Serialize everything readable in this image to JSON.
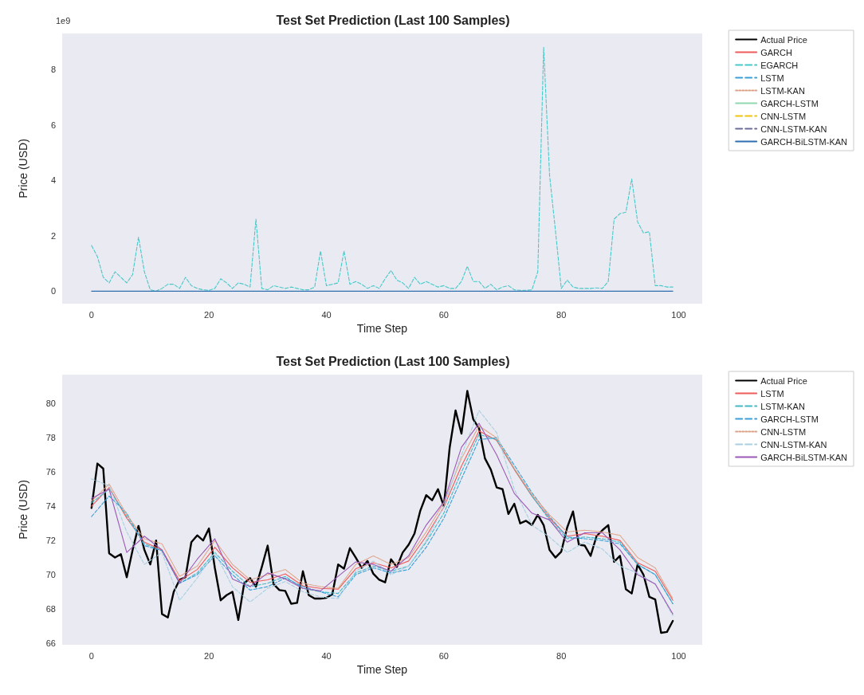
{
  "chart_data": [
    {
      "type": "line",
      "title": "Test Set Prediction (Last 100 Samples)",
      "xlabel": "Time Step",
      "ylabel": "Price (USD)",
      "annotations": [
        "1e9"
      ],
      "xlim": [
        -5,
        104
      ],
      "xticks": [
        0,
        20,
        40,
        60,
        80,
        100
      ],
      "ylim": [
        -0.45,
        9.3
      ],
      "yticks": [
        0,
        2,
        4,
        6,
        8
      ],
      "grid": false,
      "legend": "top right",
      "x": [
        0,
        1,
        2,
        3,
        4,
        5,
        6,
        7,
        8,
        9,
        10,
        11,
        12,
        13,
        14,
        15,
        16,
        17,
        18,
        19,
        20,
        21,
        22,
        23,
        24,
        25,
        26,
        27,
        28,
        29,
        30,
        31,
        32,
        33,
        34,
        35,
        36,
        37,
        38,
        39,
        40,
        41,
        42,
        43,
        44,
        45,
        46,
        47,
        48,
        49,
        50,
        51,
        52,
        53,
        54,
        55,
        56,
        57,
        58,
        59,
        60,
        61,
        62,
        63,
        64,
        65,
        66,
        67,
        68,
        69,
        70,
        71,
        72,
        73,
        74,
        75,
        76,
        77,
        78,
        79,
        80,
        81,
        82,
        83,
        84,
        85,
        86,
        87,
        88,
        89,
        90,
        91,
        92,
        93,
        94,
        95,
        96,
        97,
        98,
        99
      ],
      "series": [
        {
          "name": "Actual Price",
          "color": "#000000",
          "line_style": "solid",
          "values": [
            null,
            null,
            null,
            null,
            null,
            null,
            null,
            null,
            null,
            null,
            null,
            null,
            null,
            null,
            null,
            null,
            null,
            null,
            null,
            null,
            null,
            null,
            null,
            null,
            null,
            null,
            null,
            null,
            null,
            null,
            null,
            null,
            null,
            null,
            null,
            null,
            null,
            null,
            null,
            null,
            null,
            null,
            null,
            null,
            null,
            null,
            null,
            null,
            null,
            null,
            null,
            null,
            null,
            null,
            null,
            null,
            null,
            null,
            null,
            null,
            null,
            null,
            null,
            null,
            null,
            null,
            null,
            null,
            null,
            null,
            null,
            null,
            null,
            null,
            null,
            null,
            null,
            null,
            null,
            null,
            null,
            null,
            null,
            null,
            null,
            null,
            null,
            null,
            null,
            null,
            null,
            null,
            null,
            null,
            null,
            null,
            null,
            null,
            null,
            null
          ]
        },
        {
          "name": "GARCH",
          "color": "#f05b5b",
          "line_style": "solid",
          "values": [
            null,
            null,
            null,
            null,
            null,
            null,
            null,
            null,
            null,
            null,
            null,
            null,
            null,
            null,
            null,
            null,
            null,
            null,
            null,
            null,
            null,
            null,
            null,
            null,
            null,
            null,
            null,
            null,
            null,
            null,
            null,
            null,
            null,
            null,
            null,
            null,
            null,
            null,
            null,
            null,
            null,
            null,
            null,
            null,
            null,
            null,
            null,
            null,
            null,
            null,
            null,
            null,
            null,
            null,
            null,
            null,
            null,
            null,
            null,
            null,
            null,
            null,
            null,
            null,
            null,
            null,
            null,
            null,
            null,
            null,
            null,
            null,
            null,
            null,
            null,
            null,
            null,
            null,
            null,
            null,
            null,
            null,
            null,
            null,
            null,
            null,
            null,
            null,
            null,
            null,
            null,
            null,
            null,
            null,
            null,
            null,
            null,
            null,
            null,
            null
          ]
        },
        {
          "name": "EGARCH",
          "color": "#48c9c9",
          "line_style": "dashed",
          "values": [
            1.65,
            1.25,
            0.5,
            0.3,
            0.7,
            0.5,
            0.3,
            0.6,
            1.95,
            0.7,
            0.05,
            0.0,
            0.1,
            0.25,
            0.25,
            0.1,
            0.5,
            0.2,
            0.1,
            0.05,
            0.03,
            0.1,
            0.45,
            0.3,
            0.1,
            0.3,
            0.25,
            0.15,
            2.6,
            0.1,
            0.05,
            0.2,
            0.15,
            0.1,
            0.15,
            0.1,
            0.05,
            0.05,
            0.15,
            1.45,
            0.2,
            0.25,
            0.3,
            1.45,
            0.25,
            0.35,
            0.25,
            0.1,
            0.2,
            0.1,
            0.45,
            0.75,
            0.4,
            0.3,
            0.1,
            0.5,
            0.25,
            0.35,
            0.25,
            0.15,
            0.2,
            0.1,
            0.1,
            0.35,
            0.9,
            0.35,
            0.35,
            0.1,
            0.25,
            0.05,
            0.15,
            0.2,
            0.05,
            0.03,
            0.03,
            0.05,
            0.7,
            8.8,
            4.2,
            2.2,
            0.1,
            0.4,
            0.15,
            0.1,
            0.1,
            0.1,
            0.12,
            0.1,
            0.35,
            2.6,
            2.8,
            2.85,
            4.05,
            2.5,
            2.1,
            2.15,
            0.2,
            0.2,
            0.15,
            0.15
          ]
        },
        {
          "name": "LSTM",
          "color": "#3aa0d8",
          "line_style": "dashed",
          "values": [
            null,
            null,
            null,
            null,
            null,
            null,
            null,
            null,
            null,
            null,
            null,
            null,
            null,
            null,
            null,
            null,
            null,
            null,
            null,
            null,
            null,
            null,
            null,
            null,
            null,
            null,
            null,
            null,
            null,
            null,
            null,
            null,
            null,
            null,
            null,
            null,
            null,
            null,
            null,
            null,
            null,
            null,
            null,
            null,
            null,
            null,
            null,
            null,
            null,
            null,
            null,
            null,
            null,
            null,
            null,
            null,
            null,
            null,
            null,
            null,
            null,
            null,
            null,
            null,
            null,
            null,
            null,
            null,
            null,
            null,
            null,
            null,
            null,
            null,
            null,
            null,
            null,
            null,
            null,
            null,
            null,
            null,
            null,
            null,
            null,
            null,
            null,
            null,
            null,
            null,
            null,
            null,
            null,
            null,
            null,
            null,
            null,
            null,
            null,
            null
          ]
        },
        {
          "name": "LSTM-KAN",
          "color": "#e0a080",
          "line_style": "dotted",
          "values": [
            null,
            null,
            null,
            null,
            null,
            null,
            null,
            null,
            null,
            null,
            null,
            null,
            null,
            null,
            null,
            null,
            null,
            null,
            null,
            null,
            null,
            null,
            null,
            null,
            null,
            null,
            null,
            null,
            null,
            null,
            null,
            null,
            null,
            null,
            null,
            null,
            null,
            null,
            null,
            null,
            null,
            null,
            null,
            null,
            null,
            null,
            null,
            null,
            null,
            null,
            null,
            null,
            null,
            null,
            null,
            null,
            null,
            null,
            null,
            null,
            null,
            null,
            null,
            null,
            null,
            null,
            null,
            null,
            null,
            null,
            null,
            null,
            null,
            null,
            null,
            null,
            null,
            null,
            null,
            null,
            null,
            null,
            null,
            null,
            null,
            null,
            null,
            null,
            null,
            null,
            null,
            null,
            null,
            null,
            null,
            null,
            null,
            null,
            null,
            null
          ]
        },
        {
          "name": "GARCH-LSTM",
          "color": "#8fd8b0",
          "line_style": "solid",
          "values": [
            null,
            null,
            null,
            null,
            null,
            null,
            null,
            null,
            null,
            null,
            null,
            null,
            null,
            null,
            null,
            null,
            null,
            null,
            null,
            null,
            null,
            null,
            null,
            null,
            null,
            null,
            null,
            null,
            null,
            null,
            null,
            null,
            null,
            null,
            null,
            null,
            null,
            null,
            null,
            null,
            null,
            null,
            null,
            null,
            null,
            null,
            null,
            null,
            null,
            null,
            null,
            null,
            null,
            null,
            null,
            null,
            null,
            null,
            null,
            null,
            null,
            null,
            null,
            null,
            null,
            null,
            null,
            null,
            null,
            null,
            null,
            null,
            null,
            null,
            null,
            null,
            null,
            null,
            null,
            null,
            null,
            null,
            null,
            null,
            null,
            null,
            null,
            null,
            null,
            null,
            null,
            null,
            null,
            null,
            null,
            null,
            null,
            null,
            null,
            null
          ]
        },
        {
          "name": "CNN-LSTM",
          "color": "#f1c40f",
          "line_style": "dashed",
          "values": [
            null,
            null,
            null,
            null,
            null,
            null,
            null,
            null,
            null,
            null,
            null,
            null,
            null,
            null,
            null,
            null,
            null,
            null,
            null,
            null,
            null,
            null,
            null,
            null,
            null,
            null,
            null,
            null,
            null,
            null,
            null,
            null,
            null,
            null,
            null,
            null,
            null,
            null,
            null,
            null,
            null,
            null,
            null,
            null,
            null,
            null,
            null,
            null,
            null,
            null,
            null,
            null,
            null,
            null,
            null,
            null,
            null,
            null,
            null,
            null,
            null,
            null,
            null,
            null,
            null,
            null,
            null,
            null,
            null,
            null,
            null,
            null,
            null,
            null,
            null,
            null,
            null,
            null,
            null,
            null,
            null,
            null,
            null,
            null,
            null,
            null,
            null,
            null,
            null,
            null,
            null,
            null,
            null,
            null,
            null,
            null,
            null,
            null,
            null,
            null
          ]
        },
        {
          "name": "CNN-LSTM-KAN",
          "color": "#6c6c9a",
          "line_style": "dashed",
          "values": [
            null,
            null,
            null,
            null,
            null,
            null,
            null,
            null,
            null,
            null,
            null,
            null,
            null,
            null,
            null,
            null,
            null,
            null,
            null,
            null,
            null,
            null,
            null,
            null,
            null,
            null,
            null,
            null,
            null,
            null,
            null,
            null,
            null,
            null,
            null,
            null,
            null,
            null,
            null,
            null,
            null,
            null,
            null,
            null,
            null,
            null,
            null,
            null,
            null,
            null,
            null,
            null,
            null,
            null,
            null,
            null,
            null,
            null,
            null,
            null,
            null,
            null,
            null,
            null,
            null,
            null,
            null,
            null,
            null,
            null,
            null,
            null,
            null,
            null,
            null,
            null,
            null,
            null,
            null,
            null,
            null,
            null,
            null,
            null,
            null,
            null,
            null,
            null,
            null,
            null,
            null,
            null,
            null,
            null,
            null,
            null,
            null,
            null,
            null,
            null
          ]
        },
        {
          "name": "GARCH-BiLSTM-KAN",
          "color": "#2f6fb0",
          "x": [
            0,
            99
          ],
          "values": [
            0,
            0
          ],
          "line_style": "solid"
        }
      ]
    },
    {
      "type": "line",
      "title": "Test Set Prediction (Last 100 Samples)",
      "xlabel": "Time Step",
      "ylabel": "Price (USD)",
      "xlim": [
        -5,
        104
      ],
      "xticks": [
        0,
        20,
        40,
        60,
        80,
        100
      ],
      "ylim": [
        65.9,
        81.7
      ],
      "yticks": [
        66,
        68,
        70,
        72,
        74,
        76,
        78,
        80
      ],
      "grid": false,
      "legend": "top right",
      "x": [
        0,
        1,
        2,
        3,
        4,
        5,
        6,
        7,
        8,
        9,
        10,
        11,
        12,
        13,
        14,
        15,
        16,
        17,
        18,
        19,
        20,
        21,
        22,
        23,
        24,
        25,
        26,
        27,
        28,
        29,
        30,
        31,
        32,
        33,
        34,
        35,
        36,
        37,
        38,
        39,
        40,
        41,
        42,
        43,
        44,
        45,
        46,
        47,
        48,
        49,
        50,
        51,
        52,
        53,
        54,
        55,
        56,
        57,
        58,
        59,
        60,
        61,
        62,
        63,
        64,
        65,
        66,
        67,
        68,
        69,
        70,
        71,
        72,
        73,
        74,
        75,
        76,
        77,
        78,
        79,
        80,
        81,
        82,
        83,
        84,
        85,
        86,
        87,
        88,
        89,
        90,
        91,
        92,
        93,
        94,
        95,
        96,
        97,
        98,
        99
      ],
      "series": [
        {
          "name": "Actual Price",
          "color": "#000000",
          "line_style": "solid",
          "values": [
            73.9,
            76.5,
            76.2,
            71.25,
            71.0,
            71.2,
            69.85,
            71.45,
            72.85,
            71.45,
            70.6,
            72.0,
            67.7,
            67.5,
            69.0,
            69.7,
            69.85,
            71.9,
            72.3,
            72.0,
            72.7,
            70.4,
            68.5,
            68.8,
            69.0,
            67.35,
            69.5,
            69.8,
            69.3,
            70.45,
            71.7,
            69.45,
            69.1,
            69.05,
            68.3,
            68.35,
            70.2,
            68.8,
            68.6,
            68.6,
            68.65,
            68.85,
            70.6,
            70.35,
            71.55,
            71.0,
            70.4,
            70.8,
            70.05,
            69.7,
            69.55,
            70.9,
            70.45,
            71.3,
            71.75,
            72.4,
            73.75,
            74.65,
            74.35,
            75.0,
            74.0,
            77.45,
            79.6,
            78.25,
            80.75,
            79.1,
            78.55,
            76.8,
            76.15,
            75.1,
            75.0,
            73.55,
            74.15,
            73.0,
            73.15,
            72.9,
            73.5,
            72.9,
            71.45,
            71.0,
            71.35,
            72.75,
            73.7,
            71.75,
            71.7,
            71.1,
            72.25,
            72.6,
            72.9,
            70.75,
            71.1,
            69.15,
            68.9,
            70.6,
            70.0,
            68.7,
            68.55,
            66.6,
            66.65,
            67.3
          ]
        },
        {
          "name": "LSTM",
          "color": "#f05b5b",
          "line_style": "solid",
          "x": [
            0,
            3,
            6,
            9,
            12,
            15,
            18,
            21,
            24,
            27,
            30,
            33,
            36,
            39,
            42,
            45,
            48,
            51,
            54,
            57,
            60,
            63,
            66,
            69,
            72,
            75,
            78,
            81,
            84,
            87,
            90,
            93,
            96,
            99
          ],
          "values": [
            74.0,
            75.1,
            73.3,
            71.9,
            71.45,
            69.65,
            70.3,
            71.6,
            70.4,
            69.55,
            69.7,
            70.05,
            69.35,
            69.2,
            69.15,
            70.35,
            70.7,
            70.4,
            70.8,
            72.25,
            73.95,
            76.35,
            78.4,
            77.85,
            76.15,
            74.6,
            73.3,
            72.25,
            72.4,
            72.25,
            72.0,
            70.7,
            70.2,
            68.5
          ]
        },
        {
          "name": "LSTM-KAN",
          "color": "#45b8c8",
          "line_style": "dashed",
          "x": [
            0,
            3,
            6,
            9,
            12,
            15,
            18,
            21,
            24,
            27,
            30,
            33,
            36,
            39,
            42,
            45,
            48,
            51,
            54,
            57,
            60,
            63,
            66,
            69,
            72,
            75,
            78,
            81,
            84,
            87,
            90,
            93,
            96,
            99
          ],
          "values": [
            74.2,
            75.0,
            73.4,
            71.8,
            71.4,
            69.5,
            70.1,
            71.3,
            70.2,
            69.3,
            69.5,
            69.9,
            69.2,
            69.0,
            68.9,
            70.1,
            70.5,
            70.2,
            70.5,
            71.9,
            73.6,
            76.0,
            78.2,
            77.9,
            76.2,
            74.6,
            73.2,
            72.1,
            72.2,
            72.1,
            71.9,
            70.6,
            70.0,
            68.3
          ]
        },
        {
          "name": "GARCH-LSTM",
          "color": "#3aa0d8",
          "line_style": "dashed",
          "x": [
            0,
            3,
            6,
            9,
            12,
            15,
            18,
            21,
            24,
            27,
            30,
            33,
            36,
            39,
            42,
            45,
            48,
            51,
            54,
            57,
            60,
            63,
            66,
            69,
            72,
            75,
            78,
            81,
            84,
            87,
            90,
            93,
            96,
            99
          ],
          "values": [
            73.4,
            74.6,
            73.6,
            71.7,
            71.4,
            69.5,
            70.0,
            71.1,
            70.0,
            69.1,
            69.3,
            69.8,
            69.3,
            69.0,
            68.7,
            70.0,
            70.4,
            70.1,
            70.3,
            71.6,
            73.3,
            75.6,
            77.9,
            78.0,
            76.4,
            74.8,
            73.4,
            72.2,
            72.1,
            72.0,
            71.8,
            70.6,
            70.0,
            68.3
          ]
        },
        {
          "name": "CNN-LSTM",
          "color": "#e0a080",
          "line_style": "dotted",
          "x": [
            0,
            3,
            6,
            9,
            12,
            15,
            18,
            21,
            24,
            27,
            30,
            33,
            36,
            39,
            42,
            45,
            48,
            51,
            54,
            57,
            60,
            63,
            66,
            69,
            72,
            75,
            78,
            81,
            84,
            87,
            90,
            93,
            96,
            99
          ],
          "values": [
            74.3,
            75.3,
            73.5,
            72.1,
            71.8,
            69.9,
            70.5,
            72.0,
            70.6,
            69.7,
            70.0,
            70.3,
            69.5,
            69.3,
            69.2,
            70.6,
            71.1,
            70.6,
            71.0,
            72.5,
            74.2,
            76.8,
            78.7,
            78.0,
            76.2,
            74.7,
            73.5,
            72.5,
            72.6,
            72.5,
            72.3,
            71.0,
            70.4,
            68.6
          ]
        },
        {
          "name": "CNN-LSTM-KAN",
          "color": "#a8d0e0",
          "line_style": "dashed",
          "x": [
            0,
            3,
            6,
            9,
            12,
            15,
            18,
            21,
            24,
            27,
            30,
            33,
            36,
            39,
            42,
            45,
            48,
            51,
            54,
            57,
            60,
            63,
            66,
            69,
            72,
            75,
            78,
            81,
            84,
            87,
            90,
            93,
            96,
            99
          ],
          "values": [
            75.6,
            75.2,
            72.5,
            70.6,
            71.3,
            68.5,
            69.8,
            71.3,
            69.3,
            68.4,
            69.2,
            69.6,
            69.0,
            68.7,
            68.6,
            70.2,
            70.8,
            70.0,
            70.5,
            72.0,
            74.0,
            77.0,
            79.6,
            78.3,
            75.0,
            72.9,
            72.2,
            71.3,
            71.9,
            71.5,
            70.5,
            70.1,
            69.45,
            67.6
          ]
        },
        {
          "name": "GARCH-BiLSTM-KAN",
          "color": "#9b59b6",
          "line_style": "solid",
          "x": [
            0,
            3,
            6,
            9,
            12,
            15,
            18,
            21,
            24,
            27,
            30,
            33,
            36,
            39,
            42,
            45,
            48,
            51,
            54,
            57,
            60,
            63,
            66,
            69,
            72,
            75,
            78,
            81,
            84,
            87,
            90,
            93,
            96,
            99
          ],
          "values": [
            74.45,
            75.0,
            71.3,
            72.25,
            71.45,
            69.5,
            70.9,
            72.1,
            69.75,
            69.3,
            70.1,
            69.75,
            69.2,
            69.05,
            69.9,
            70.75,
            70.6,
            70.2,
            71.1,
            72.9,
            74.25,
            77.45,
            78.85,
            77.0,
            74.75,
            73.6,
            73.2,
            71.9,
            72.45,
            72.45,
            71.45,
            70.0,
            69.45,
            67.7
          ]
        }
      ]
    }
  ]
}
